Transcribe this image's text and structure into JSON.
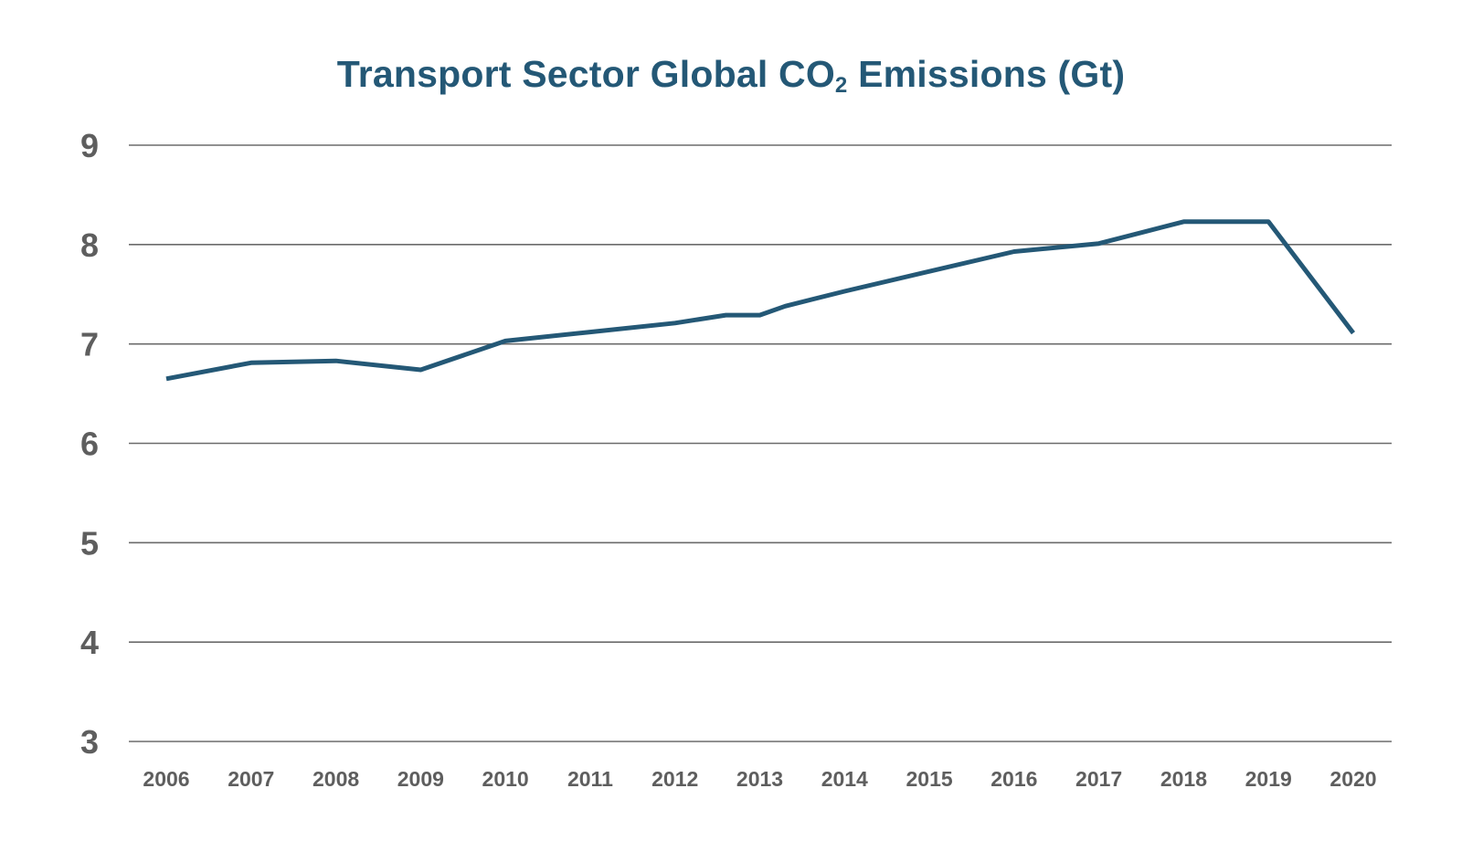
{
  "chart_data": {
    "type": "line",
    "title_main": "Transport Sector Global CO",
    "title_sub": "2",
    "title_suffix": " Emissions (Gt)",
    "xlabel": "",
    "ylabel": "",
    "x_tick_labels": [
      "2006",
      "2007",
      "2008",
      "2009",
      "2010",
      "2011",
      "2012",
      "2013",
      "2014",
      "2015",
      "2016",
      "2017",
      "2018",
      "2019",
      "2020"
    ],
    "y_ticks": [
      3,
      4,
      5,
      6,
      7,
      8,
      9
    ],
    "ylim": [
      3,
      9
    ],
    "xlim": [
      2006,
      2020
    ],
    "grid": true,
    "legend": "none",
    "series": [
      {
        "name": "Transport Sector Global CO2 Emissions (Gt)",
        "color": "#245876",
        "points": [
          {
            "x": 2006.0,
            "y": 6.65
          },
          {
            "x": 2007.0,
            "y": 6.81
          },
          {
            "x": 2008.0,
            "y": 6.83
          },
          {
            "x": 2009.0,
            "y": 6.74
          },
          {
            "x": 2010.0,
            "y": 7.03
          },
          {
            "x": 2011.0,
            "y": 7.12
          },
          {
            "x": 2012.0,
            "y": 7.21
          },
          {
            "x": 2012.6,
            "y": 7.29
          },
          {
            "x": 2013.0,
            "y": 7.29
          },
          {
            "x": 2013.3,
            "y": 7.38
          },
          {
            "x": 2014.0,
            "y": 7.53
          },
          {
            "x": 2015.0,
            "y": 7.73
          },
          {
            "x": 2016.0,
            "y": 7.93
          },
          {
            "x": 2017.0,
            "y": 8.01
          },
          {
            "x": 2018.0,
            "y": 8.23
          },
          {
            "x": 2019.0,
            "y": 8.23
          },
          {
            "x": 2020.0,
            "y": 7.11
          }
        ]
      }
    ]
  }
}
